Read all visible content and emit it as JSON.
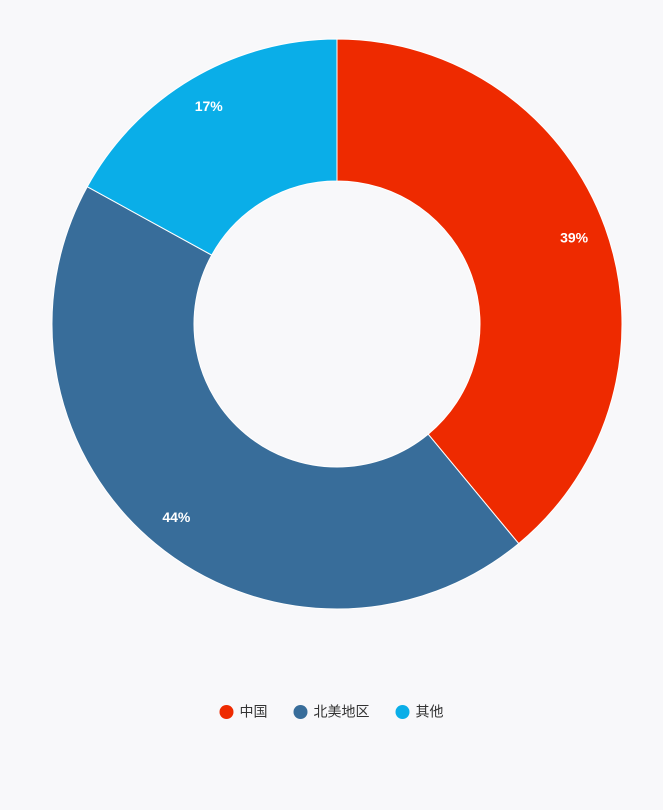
{
  "chart_data": {
    "type": "pie",
    "categories": [
      "中国",
      "北美地区",
      "其他"
    ],
    "values": [
      39,
      44,
      17
    ],
    "value_labels": [
      "39%",
      "44%",
      "17%"
    ],
    "colors": [
      "#ee2a00",
      "#386d9a",
      "#0aaee8"
    ],
    "donut": true,
    "legend": "bottom"
  }
}
